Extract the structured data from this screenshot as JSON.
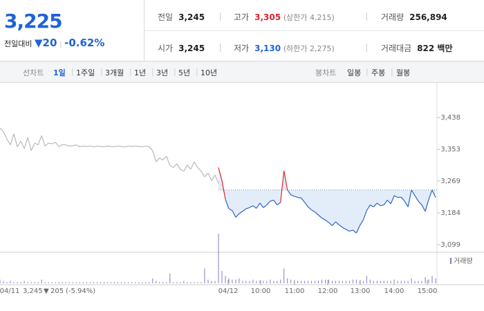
{
  "header": {
    "price": "3,225",
    "change_label": "전일대비",
    "change": "20",
    "change_pct": "-0.62%",
    "stats": [
      {
        "label": "전일",
        "value": "3,245"
      },
      {
        "label": "고가",
        "value": "3,305",
        "note": "(상한가 4,215)"
      },
      {
        "label": "거래량",
        "value": "256,894"
      },
      {
        "label": "시가",
        "value": "3,245"
      },
      {
        "label": "저가",
        "value": "3,130",
        "note": "(하한가 2,275)"
      },
      {
        "label": "거래대금",
        "value": "822 백만"
      }
    ]
  },
  "tabs": {
    "line_label": "선차트",
    "line_tabs": [
      "1일",
      "1주일",
      "3개월",
      "1년",
      "3년",
      "5년",
      "10년"
    ],
    "candle_label": "봉차트",
    "candle_tabs": [
      "일봉",
      "주봉",
      "월봉"
    ]
  },
  "chart_data": {
    "type": "line",
    "ylim": [
      3079,
      3521
    ],
    "yticks": [
      {
        "value": 3438,
        "label": "3,438"
      },
      {
        "value": 3353,
        "label": "3,353"
      },
      {
        "value": 3269,
        "label": "3,269"
      },
      {
        "value": 3184,
        "label": "3,184"
      },
      {
        "value": 3099,
        "label": "3,099"
      }
    ],
    "baseline": 3245,
    "x_labels": [
      "04/11",
      "04/12",
      "10:00",
      "11:00",
      "12:00",
      "13:00",
      "14:00",
      "15:00"
    ],
    "series": [
      {
        "color": "#b8b8b8",
        "values": [
          3410,
          3400,
          3380,
          3365,
          3395,
          3360,
          3375,
          3355,
          3385,
          3350,
          3370,
          3365,
          3390,
          3362,
          3370,
          3368,
          3372,
          3360,
          3366,
          3365,
          3362,
          3363,
          3365,
          3360,
          3362,
          3361,
          3362,
          3360,
          3362,
          3361,
          3360,
          3362,
          3361,
          3360,
          3362,
          3361,
          3360,
          3362,
          3361,
          3362,
          3361,
          3360,
          3362,
          3360,
          3350,
          3320,
          3330,
          3325,
          3335,
          3310,
          3305,
          3315,
          3300,
          3295,
          3312,
          3300,
          3320,
          3305,
          3295,
          3280,
          3290,
          3270,
          3285,
          3262
        ]
      },
      {
        "color": "#2a64c5",
        "up_color": "#e0252b",
        "fill": "#e3edf9",
        "values": [
          3305,
          3270,
          3220,
          3195,
          3190,
          3172,
          3182,
          3188,
          3195,
          3198,
          3203,
          3196,
          3210,
          3198,
          3205,
          3215,
          3218,
          3205,
          3212,
          3296,
          3245,
          3232,
          3228,
          3225,
          3224,
          3212,
          3200,
          3192,
          3186,
          3178,
          3170,
          3165,
          3158,
          3150,
          3160,
          3152,
          3145,
          3140,
          3135,
          3138,
          3130,
          3150,
          3165,
          3190,
          3205,
          3200,
          3210,
          3203,
          3205,
          3218,
          3208,
          3230,
          3225,
          3226,
          3215,
          3200,
          3245,
          3230,
          3215,
          3205,
          3188,
          3220,
          3245,
          3225
        ]
      }
    ],
    "volume": {
      "name": "거래량",
      "color": "#8a7bbf",
      "prev": [
        3,
        2,
        1,
        2,
        1,
        1,
        1,
        2,
        1,
        1,
        1,
        1,
        3,
        1,
        1,
        1,
        1,
        1,
        1,
        1,
        1,
        1,
        1,
        1,
        1,
        1,
        1,
        1,
        1,
        1,
        1,
        1,
        1,
        1,
        1,
        1,
        1,
        1,
        1,
        1,
        1,
        1,
        1,
        1,
        4,
        2,
        1,
        1,
        1,
        8,
        1,
        1,
        1,
        2,
        1,
        1,
        1,
        1,
        1,
        12,
        3,
        2,
        2,
        1
      ],
      "today": [
        40,
        10,
        6,
        4,
        3,
        3,
        4,
        2,
        2,
        2,
        3,
        2,
        2,
        2,
        2,
        3,
        2,
        2,
        3,
        12,
        4,
        3,
        2,
        2,
        2,
        2,
        2,
        2,
        2,
        2,
        3,
        3,
        3,
        2,
        2,
        2,
        2,
        2,
        2,
        3,
        3,
        2,
        2,
        6,
        3,
        2,
        2,
        2,
        2,
        2,
        2,
        3,
        2,
        2,
        2,
        2,
        4,
        2,
        2,
        2,
        5,
        3,
        6,
        4
      ]
    },
    "footer": {
      "date": "04/11",
      "close": "3,245",
      "change": "205",
      "pct": "(-5.94%)"
    }
  }
}
